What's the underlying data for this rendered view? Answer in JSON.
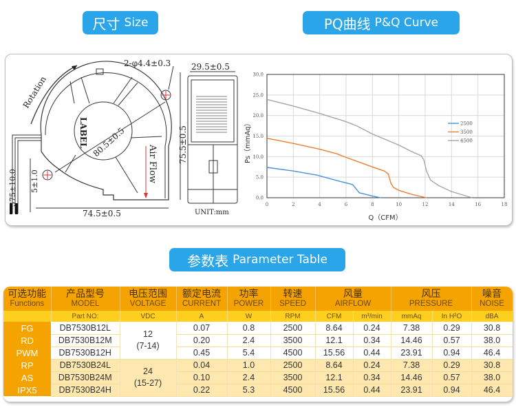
{
  "titles": {
    "size": {
      "cn": "尺寸",
      "en": "Size"
    },
    "pq": {
      "cn": "PQ曲线",
      "en": "P&Q Curve"
    },
    "param": {
      "cn": "参数表",
      "en": "Parameter Table"
    }
  },
  "drawing": {
    "rotation_label": "Rotation",
    "hole_label": "2-φ4.4±0.3",
    "width_label": "74.5±0.5",
    "height_label": "75.5±0.5",
    "diagonal_label": "80.5±0.5",
    "depth_label": "29.5±0.5",
    "lead_length_label": "375±10.0",
    "strip_label": "5±1.0",
    "label_text": "LABEL",
    "airflow_label": "Air Flow",
    "unit_label": "UNIT:mm"
  },
  "chart_data": {
    "type": "line",
    "title": "PQ曲线 P&Q Curve",
    "xlabel": "Q（CFM）",
    "ylabel": "Ps（mmAq）",
    "xlim": [
      0,
      18
    ],
    "ylim": [
      0,
      30
    ],
    "x_ticks": [
      "0",
      "2",
      "4",
      "6",
      "8",
      "10",
      "12",
      "14",
      "16",
      "18"
    ],
    "y_ticks": [
      "0.0",
      "5.0",
      "10.0",
      "15.0",
      "20.0",
      "25.0",
      "30.0"
    ],
    "grid": true,
    "legend_position": "right",
    "series": [
      {
        "name": "2500",
        "color": "#4a90d9",
        "x": [
          0,
          2,
          3.8,
          5.5,
          6.5,
          6.8,
          7.0,
          7.5,
          8.0,
          8.64
        ],
        "y": [
          7.38,
          6.5,
          5.5,
          4.0,
          3.2,
          2.0,
          1.2,
          0.8,
          0.4,
          0
        ]
      },
      {
        "name": "3500",
        "color": "#ed7d31",
        "x": [
          0,
          2,
          4,
          5.3,
          6,
          8,
          8.9,
          9.2,
          9.4,
          9.6,
          10,
          11,
          12.1
        ],
        "y": [
          14.46,
          13.2,
          11.8,
          10.7,
          9.8,
          7.5,
          6.5,
          5.8,
          3.5,
          2.5,
          1.8,
          0.8,
          0
        ]
      },
      {
        "name": "4500",
        "color": "#a5a5a5",
        "x": [
          0,
          2,
          4,
          6,
          6.8,
          8,
          10,
          11,
          11.7,
          11.9,
          12.1,
          12.4,
          13,
          14,
          15.56
        ],
        "y": [
          23.91,
          22.3,
          20.5,
          18.5,
          17.5,
          15.5,
          12.8,
          11.2,
          10.2,
          9.2,
          6.5,
          4.3,
          3.0,
          1.5,
          0
        ]
      }
    ]
  },
  "table": {
    "headers": [
      {
        "cn": "可选功能",
        "en": "Functions"
      },
      {
        "cn": "产品型号",
        "en": "MODEL"
      },
      {
        "cn": "电压范围",
        "en": "VOLTAGE"
      },
      {
        "cn": "额定电流",
        "en": "CURRENT"
      },
      {
        "cn": "功率",
        "en": "POWER"
      },
      {
        "cn": "转速",
        "en": "SPEED"
      },
      {
        "cn": "风量",
        "en": "AIRFLOW"
      },
      {
        "cn": "风压",
        "en": "PRESSURE"
      },
      {
        "cn": "噪音",
        "en": "NOISE"
      }
    ],
    "units": [
      "",
      "Part NO:",
      "VDC",
      "A",
      "W",
      "RPM",
      "CFM",
      "m³/min",
      "mmAq",
      "In H²O",
      "dBA"
    ],
    "voltage_groups": [
      {
        "nominal": "12",
        "range": "(7-14)"
      },
      {
        "nominal": "24",
        "range": "(15-27)"
      }
    ],
    "rows": [
      {
        "function": "FG",
        "model": "DB7530B12L",
        "current": "0.07",
        "power": "0.8",
        "speed": "2500",
        "cfm": "8.64",
        "m3min": "0.24",
        "mmaq": "7.38",
        "inh2o": "0.29",
        "noise": "30.8"
      },
      {
        "function": "RD",
        "model": "DB7530B12M",
        "current": "0.20",
        "power": "2.4",
        "speed": "3500",
        "cfm": "12.1",
        "m3min": "0.34",
        "mmaq": "14.46",
        "inh2o": "0.57",
        "noise": "38.0"
      },
      {
        "function": "PWM",
        "model": "DB7530B12H",
        "current": "0.45",
        "power": "5.4",
        "speed": "4500",
        "cfm": "15.56",
        "m3min": "0.44",
        "mmaq": "23.91",
        "inh2o": "0.94",
        "noise": "46.4"
      },
      {
        "function": "RP",
        "model": "DB7530B24L",
        "current": "0.04",
        "power": "1.0",
        "speed": "2500",
        "cfm": "8.64",
        "m3min": "0.24",
        "mmaq": "7.38",
        "inh2o": "0.29",
        "noise": "30.8"
      },
      {
        "function": "AS",
        "model": "DB7530B24M",
        "current": "0.10",
        "power": "2.4",
        "speed": "3500",
        "cfm": "12.1",
        "m3min": "0.34",
        "mmaq": "14.46",
        "inh2o": "0.57",
        "noise": "38.0"
      },
      {
        "function": "IPX5",
        "model": "DB7530B24H",
        "current": "0.22",
        "power": "5.3",
        "speed": "4500",
        "cfm": "15.56",
        "m3min": "0.44",
        "mmaq": "23.91",
        "inh2o": "0.94",
        "noise": "46.4"
      }
    ]
  }
}
